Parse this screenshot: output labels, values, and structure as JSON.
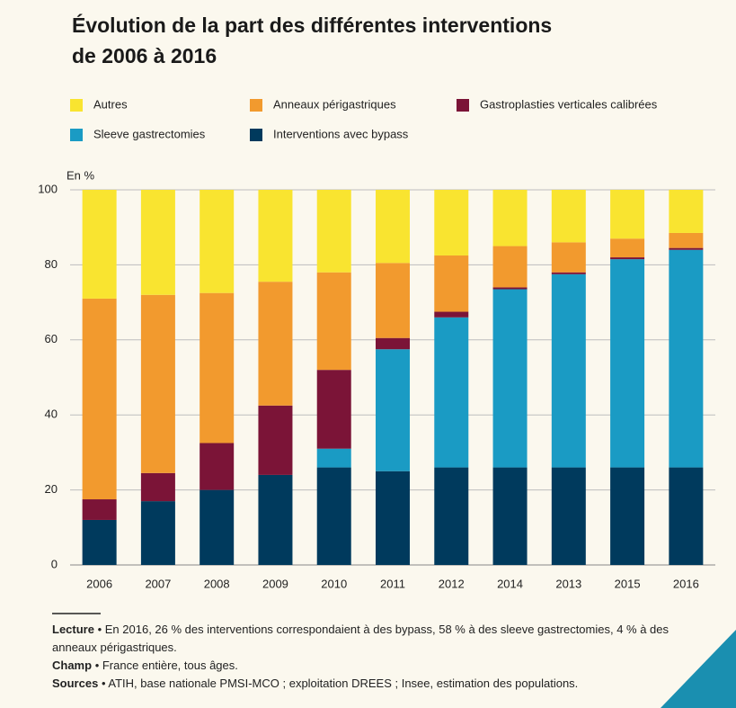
{
  "chart_data": {
    "type": "stacked_bar",
    "title": [
      "Évolution de la part des différentes interventions",
      "de 2006 à 2016"
    ],
    "y_axis_label": "En %",
    "categories": [
      "2006",
      "2007",
      "2008",
      "2009",
      "2010",
      "2011",
      "2012",
      "2014",
      "2013",
      "2015",
      "2016"
    ],
    "series": [
      {
        "name": "Interventions avec bypass",
        "color": "#003a5d",
        "values": [
          12,
          17,
          20,
          24,
          26,
          25,
          26,
          26,
          26,
          26,
          26
        ]
      },
      {
        "name": "Sleeve gastrectomies",
        "color": "#1a9bc4",
        "values": [
          0,
          0,
          0,
          0,
          5,
          32.5,
          40,
          47.5,
          51.5,
          55.5,
          58
        ]
      },
      {
        "name": "Gastroplasties verticales calibrées",
        "color": "#7b1437",
        "values": [
          5.5,
          7.5,
          12.5,
          18.5,
          21,
          3,
          1.5,
          0.5,
          0.5,
          0.5,
          0.5
        ]
      },
      {
        "name": "Anneaux périgastriques",
        "color": "#f29a2e",
        "values": [
          53.5,
          47.5,
          40,
          33,
          26,
          20,
          15,
          11,
          8,
          5,
          4
        ]
      },
      {
        "name": "Autres",
        "color": "#f9e430",
        "values": [
          29,
          28,
          27.5,
          24.5,
          22,
          19.5,
          17.5,
          15,
          14,
          13,
          11.5
        ]
      }
    ],
    "ylim": [
      0,
      100
    ],
    "yticks": [
      0,
      20,
      40,
      60,
      80,
      100
    ],
    "grid": true,
    "notes": [
      {
        "label": "Lecture",
        "text": "• En 2016, 26 % des interventions correspondaient à des bypass, 58 % à des sleeve gastrectomies, 4 % à des anneaux périgastriques."
      },
      {
        "label": "Champ",
        "text": "• France entière, tous âges."
      },
      {
        "label": "Sources",
        "text": "• ATIH, base nationale PMSI-MCO ; exploitation DREES ; Insee, estimation des populations."
      }
    ]
  }
}
